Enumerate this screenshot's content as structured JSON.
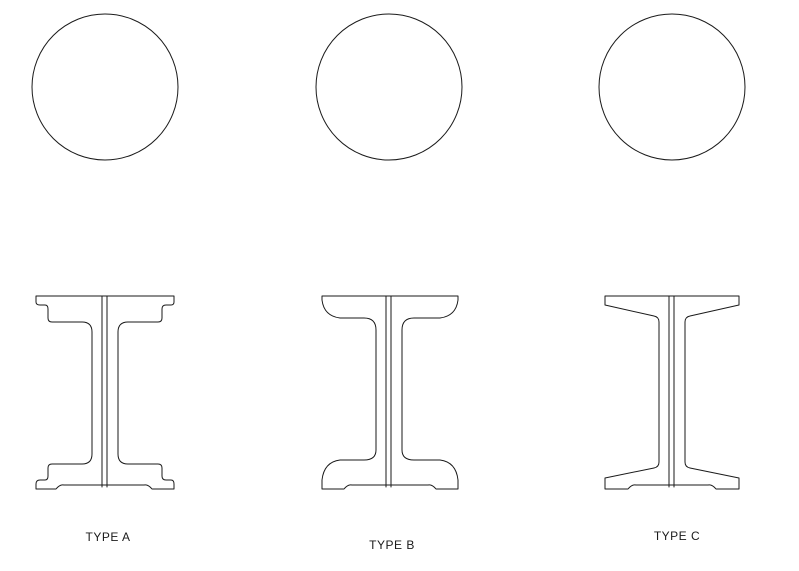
{
  "diagram": {
    "types": [
      {
        "id": "a",
        "label": "TYPE A",
        "profile": "stepped-flange"
      },
      {
        "id": "b",
        "label": "TYPE B",
        "profile": "curved-flange"
      },
      {
        "id": "c",
        "label": "TYPE C",
        "profile": "tapered-flange"
      }
    ],
    "line_color": "#1a1a1a",
    "background": "#ffffff"
  }
}
